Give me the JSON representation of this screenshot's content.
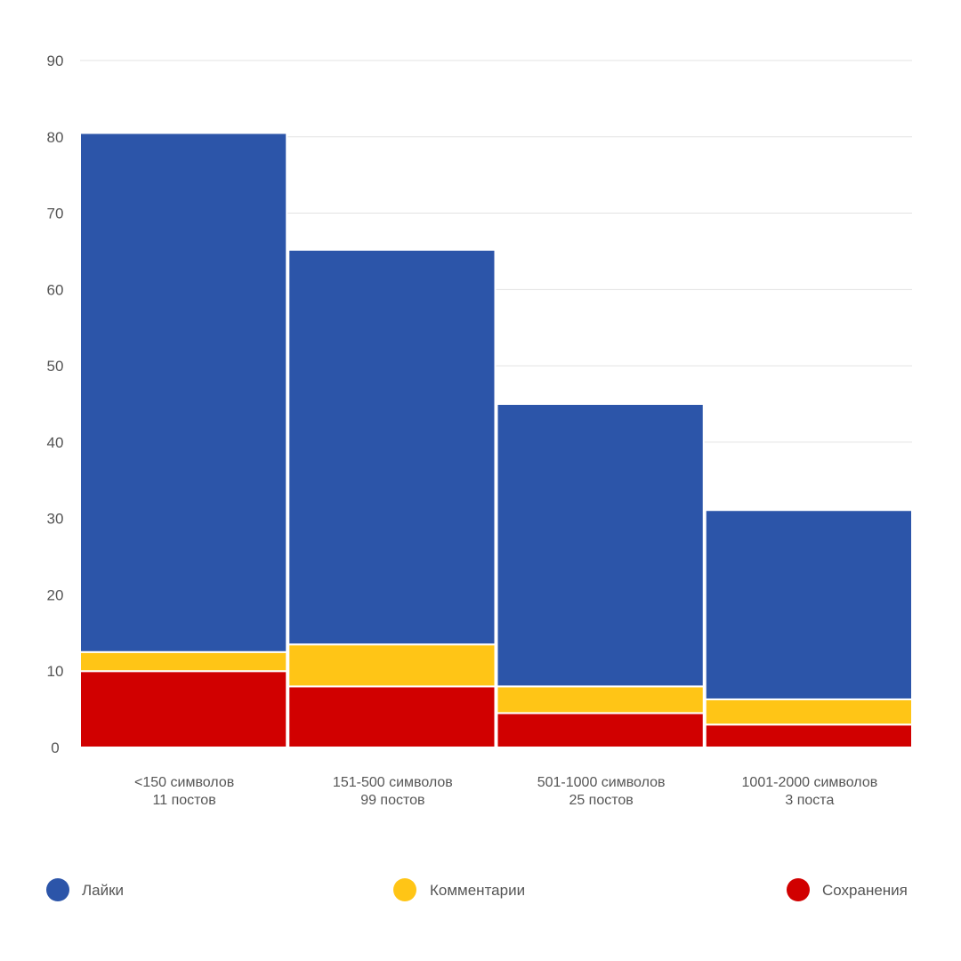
{
  "chart_data": {
    "type": "bar",
    "stacked": true,
    "categories": [
      {
        "line1": "<150 символов",
        "line2": "11 постов"
      },
      {
        "line1": "151-500 символов",
        "line2": "99 постов"
      },
      {
        "line1": "501-1000 символов",
        "line2": "25 постов"
      },
      {
        "line1": "1001-2000 символов",
        "line2": "3 поста"
      }
    ],
    "series": [
      {
        "name": "Сохранения",
        "color": "#D10000",
        "values": [
          10,
          8,
          4.5,
          3
        ]
      },
      {
        "name": "Комментарии",
        "color": "#FFC516",
        "values": [
          2.5,
          5.5,
          3.5,
          3.3
        ]
      },
      {
        "name": "Лайки",
        "color": "#2C55A9",
        "values": [
          68,
          51.7,
          37,
          24.8
        ]
      }
    ],
    "legend": [
      {
        "name": "Лайки",
        "color": "#2C55A9"
      },
      {
        "name": "Комментарии",
        "color": "#FFC516"
      },
      {
        "name": "Сохранения",
        "color": "#D10000"
      }
    ],
    "yticks": [
      "0",
      "10",
      "20",
      "30",
      "40",
      "50",
      "60",
      "70",
      "80",
      "90"
    ],
    "ylim": [
      0,
      90
    ],
    "grid": true,
    "legend_position": "bottom",
    "title": "",
    "xlabel": "",
    "ylabel": ""
  }
}
